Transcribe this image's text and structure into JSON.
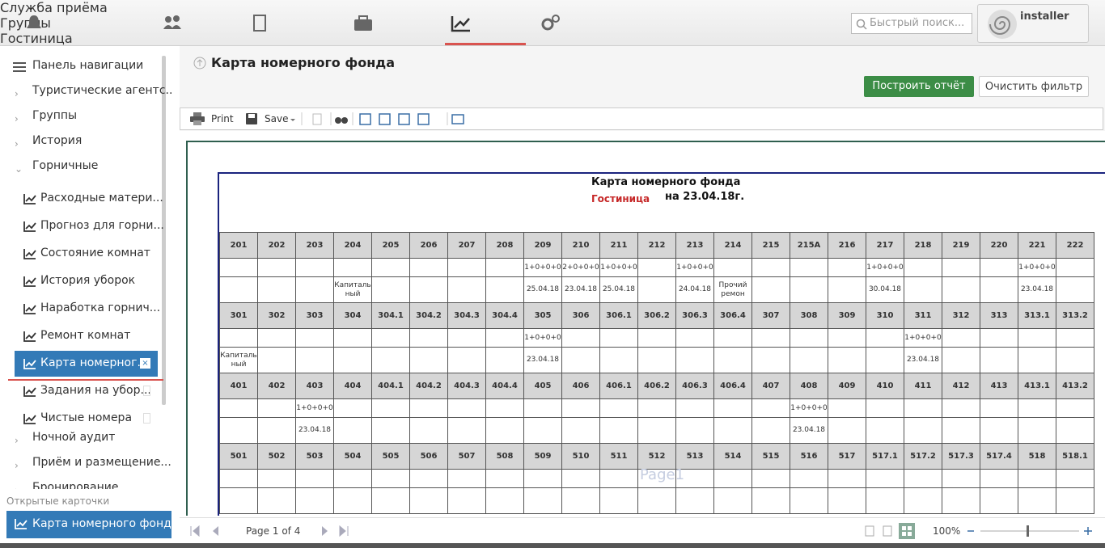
{
  "topnav": {
    "items": [
      "Служба приёма",
      "Группы",
      "Гостиница",
      "Клиенты",
      "Отчёты",
      "Администрирование"
    ]
  },
  "search": {
    "placeholder": "Быстрый поиск..."
  },
  "user": {
    "name": "installer"
  },
  "sidebar": {
    "title": "Панель навигации",
    "items": [
      {
        "label": "Туристические агентс..."
      },
      {
        "label": "Группы"
      },
      {
        "label": "История"
      },
      {
        "label": "Горничные",
        "children": [
          "Расходные матери...",
          "Прогноз для горни...",
          "Состояние комнат",
          "История уборок",
          "Наработка горнич...",
          "Ремонт комнат",
          "Карта номерног...",
          "Задания на убор...",
          "Чистые номера"
        ]
      },
      {
        "label": "Ночной аудит"
      },
      {
        "label": "Приём и размещение..."
      },
      {
        "label": "Бронирование"
      }
    ]
  },
  "open_cards": {
    "title": "Открытые карточки",
    "items": [
      "Карта номерного фонда"
    ]
  },
  "page": {
    "title": "Карта номерного фонда",
    "buttons": [
      "Построить отчёт",
      "Очистить фильтр"
    ]
  },
  "toolbar": {
    "print": "Print",
    "save": "Save"
  },
  "report": {
    "title": "Карта номерного фонда",
    "hotel": "Гостиница",
    "date": "на 23.04.18г.",
    "blocks": [
      {
        "rooms": [
          "201",
          "202",
          "203",
          "204",
          "205",
          "206",
          "207",
          "208",
          "209",
          "210",
          "211",
          "212",
          "213",
          "214",
          "215",
          "215А",
          "216",
          "217",
          "218",
          "219",
          "220",
          "221",
          "222"
        ],
        "guests": [
          null,
          null,
          null,
          null,
          null,
          null,
          null,
          null,
          "1+0+0+0",
          "2+0+0+0",
          "1+0+0+0",
          null,
          "1+0+0+0",
          null,
          null,
          null,
          null,
          "1+0+0+0",
          null,
          null,
          null,
          "1+0+0+0",
          null
        ],
        "notes": [
          null,
          null,
          null,
          "Капиталь\nный",
          null,
          null,
          null,
          null,
          "25.04.18",
          "23.04.18",
          "25.04.18",
          null,
          "24.04.18",
          "Прочий\nремон",
          null,
          null,
          null,
          "30.04.18",
          null,
          null,
          null,
          "23.04.18",
          null
        ]
      },
      {
        "rooms": [
          "301",
          "302",
          "303",
          "304",
          "304.1",
          "304.2",
          "304.3",
          "304.4",
          "305",
          "306",
          "306.1",
          "306.2",
          "306.3",
          "306.4",
          "307",
          "308",
          "309",
          "310",
          "311",
          "312",
          "313",
          "313.1",
          "313.2"
        ],
        "guests": [
          null,
          null,
          null,
          null,
          null,
          null,
          null,
          null,
          "1+0+0+0",
          null,
          null,
          null,
          null,
          null,
          null,
          null,
          null,
          null,
          "1+0+0+0",
          null,
          null,
          null,
          null
        ],
        "notes": [
          "Капиталь\nный",
          null,
          null,
          null,
          null,
          null,
          null,
          null,
          "23.04.18",
          null,
          null,
          null,
          null,
          null,
          null,
          null,
          null,
          null,
          "23.04.18",
          null,
          null,
          null,
          null
        ]
      },
      {
        "rooms": [
          "401",
          "402",
          "403",
          "404",
          "404.1",
          "404.2",
          "404.3",
          "404.4",
          "405",
          "406",
          "406.1",
          "406.2",
          "406.3",
          "406.4",
          "407",
          "408",
          "409",
          "410",
          "411",
          "412",
          "413",
          "413.1",
          "413.2"
        ],
        "guests": [
          null,
          null,
          "1+0+0+0",
          null,
          null,
          null,
          null,
          null,
          null,
          null,
          null,
          null,
          null,
          null,
          null,
          "1+0+0+0",
          null,
          null,
          null,
          null,
          null,
          null,
          null
        ],
        "notes": [
          null,
          null,
          "23.04.18",
          null,
          null,
          null,
          null,
          null,
          null,
          null,
          null,
          null,
          null,
          null,
          null,
          "23.04.18",
          null,
          null,
          null,
          null,
          null,
          null,
          null
        ]
      },
      {
        "rooms": [
          "501",
          "502",
          "503",
          "504",
          "505",
          "506",
          "507",
          "508",
          "509",
          "510",
          "511",
          "512",
          "513",
          "514",
          "515",
          "516",
          "517",
          "517.1",
          "517.2",
          "517.3",
          "517.4",
          "518",
          "518.1"
        ],
        "guests": [
          null,
          null,
          null,
          null,
          null,
          null,
          null,
          null,
          null,
          null,
          null,
          null,
          null,
          null,
          null,
          null,
          null,
          null,
          null,
          null,
          null,
          null,
          null
        ],
        "notes": [
          null,
          null,
          null,
          null,
          null,
          null,
          null,
          null,
          null,
          null,
          null,
          null,
          null,
          null,
          null,
          null,
          null,
          null,
          null,
          null,
          null,
          null,
          null
        ]
      }
    ]
  },
  "watermark": "Page1",
  "pager": {
    "status": "Page 1 of 4",
    "zoom": "100%"
  }
}
